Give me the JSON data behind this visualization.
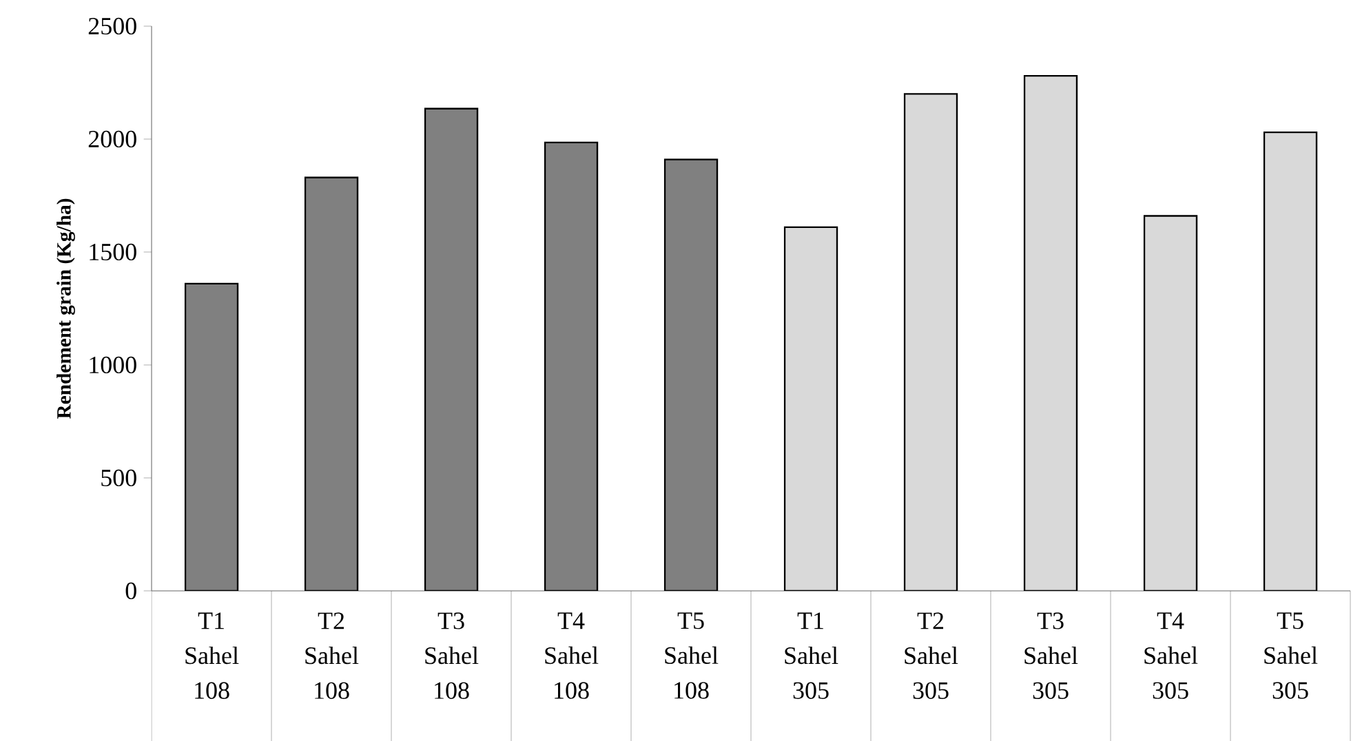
{
  "chart_data": {
    "type": "bar",
    "ylabel": "Rendement grain (Kg/ha)",
    "categories": [
      "T1 Sahel 108",
      "T2 Sahel 108",
      "T3 Sahel 108",
      "T4 Sahel 108",
      "T5 Sahel 108",
      "T1 Sahel 305",
      "T2 Sahel 305",
      "T3 Sahel 305",
      "T4 Sahel 305",
      "T5 Sahel 305"
    ],
    "values": [
      1360,
      1830,
      2135,
      1985,
      1910,
      1610,
      2200,
      2280,
      1660,
      2030
    ],
    "colors": [
      "#808080",
      "#808080",
      "#808080",
      "#808080",
      "#808080",
      "#d9d9d9",
      "#d9d9d9",
      "#d9d9d9",
      "#d9d9d9",
      "#d9d9d9"
    ],
    "ylim": [
      0,
      2500
    ],
    "yticks": [
      0,
      500,
      1000,
      1500,
      2000,
      2500
    ]
  }
}
